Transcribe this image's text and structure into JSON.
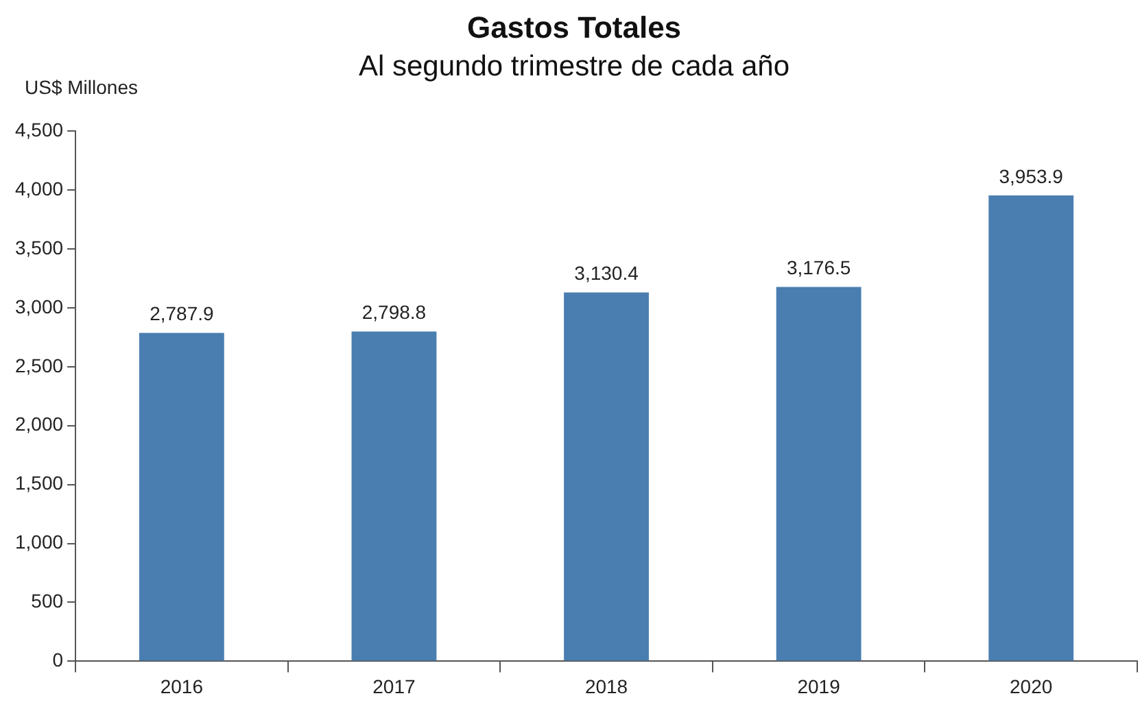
{
  "chart_data": {
    "type": "bar",
    "title": "Gastos Totales",
    "subtitle": "Al segundo trimestre de cada año",
    "ylabel": "US$ Millones",
    "categories": [
      "2016",
      "2017",
      "2018",
      "2019",
      "2020"
    ],
    "values": [
      2787.9,
      2798.8,
      3130.4,
      3176.5,
      3953.9
    ],
    "value_labels": [
      "2,787.9",
      "2,798.8",
      "3,130.4",
      "3,176.5",
      "3,953.9"
    ],
    "color": "#4a7eb0",
    "ylim": [
      0,
      4500
    ],
    "yticks": [
      {
        "value": 0,
        "label": "0"
      },
      {
        "value": 500,
        "label": "500"
      },
      {
        "value": 1000,
        "label": "1,000"
      },
      {
        "value": 1500,
        "label": "1,500"
      },
      {
        "value": 2000,
        "label": "2,000"
      },
      {
        "value": 2500,
        "label": "2,500"
      },
      {
        "value": 3000,
        "label": "3,000"
      },
      {
        "value": 3500,
        "label": "3,500"
      },
      {
        "value": 4000,
        "label": "4,000"
      },
      {
        "value": 4500,
        "label": "4,500"
      }
    ],
    "grid": false,
    "legend": false
  }
}
